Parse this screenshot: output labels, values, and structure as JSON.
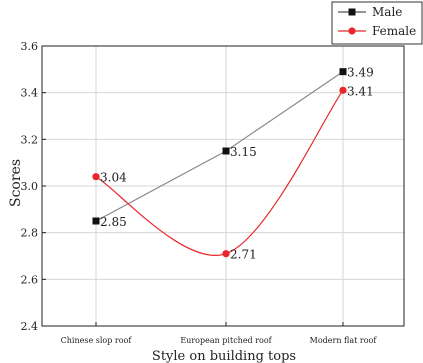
{
  "chart_data": {
    "type": "line",
    "categories": [
      "Chinese slop roof",
      "European pitched roof",
      "Modern flat roof"
    ],
    "series": [
      {
        "name": "Male",
        "values": [
          2.85,
          3.15,
          3.49
        ],
        "labels": [
          "2.85",
          "3.15",
          "3.49"
        ],
        "color": "#111111",
        "marker": "square",
        "curve": "straight"
      },
      {
        "name": "Female",
        "values": [
          3.04,
          2.71,
          3.41
        ],
        "labels": [
          "3.04",
          "2.71",
          "3.41"
        ],
        "color": "#e8262b",
        "marker": "circle",
        "curve": "smooth"
      }
    ],
    "xlabel": "Style on building tops",
    "ylabel": "Scores",
    "ylim": [
      2.4,
      3.6
    ],
    "yticks": [
      2.4,
      2.6,
      2.8,
      3.0,
      3.2,
      3.4,
      3.6
    ],
    "ytick_labels": [
      "2.4",
      "2.6",
      "2.8",
      "3.0",
      "3.2",
      "3.4",
      "3.6"
    ],
    "grid": true,
    "legend_position": "top-right"
  }
}
